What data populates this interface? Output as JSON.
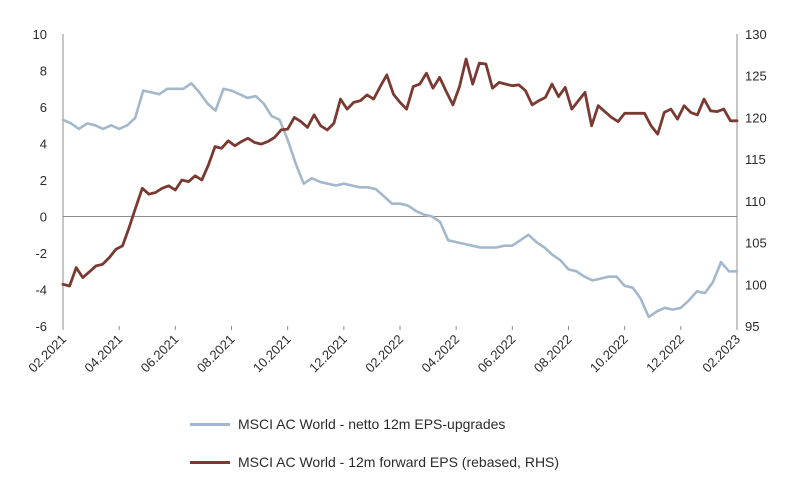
{
  "chart_data": {
    "type": "line",
    "x_ticks": [
      "02.2021",
      "04.2021",
      "06.2021",
      "08.2021",
      "10.2021",
      "12.2021",
      "02.2022",
      "04.2022",
      "06.2022",
      "08.2022",
      "10.2022",
      "12.2022",
      "02.2023"
    ],
    "y_left": {
      "min": -6,
      "max": 10,
      "ticks": [
        10,
        8,
        6,
        4,
        2,
        0,
        -2,
        -4,
        -6
      ]
    },
    "y_right": {
      "min": 95,
      "max": 130,
      "ticks": [
        130,
        125,
        120,
        115,
        110,
        105,
        100,
        95
      ]
    },
    "series": [
      {
        "name": "MSCI AC World - netto 12m EPS-upgrades",
        "axis": "left",
        "color": "#a3b8cc",
        "values": [
          5.3,
          5.1,
          4.8,
          5.1,
          5.0,
          4.8,
          5.0,
          4.8,
          5.0,
          5.4,
          6.9,
          6.8,
          6.7,
          7.0,
          7.0,
          7.0,
          7.3,
          6.8,
          6.2,
          5.8,
          7.0,
          6.9,
          6.7,
          6.5,
          6.6,
          6.2,
          5.5,
          5.3,
          4.2,
          2.9,
          1.8,
          2.1,
          1.9,
          1.8,
          1.7,
          1.8,
          1.7,
          1.6,
          1.6,
          1.5,
          1.1,
          0.7,
          0.7,
          0.6,
          0.3,
          0.1,
          0.0,
          -0.3,
          -1.3,
          -1.4,
          -1.5,
          -1.6,
          -1.7,
          -1.7,
          -1.7,
          -1.6,
          -1.6,
          -1.3,
          -1.0,
          -1.4,
          -1.7,
          -2.1,
          -2.4,
          -2.9,
          -3.0,
          -3.3,
          -3.5,
          -3.4,
          -3.3,
          -3.3,
          -3.8,
          -3.9,
          -4.5,
          -5.5,
          -5.2,
          -5.0,
          -5.1,
          -5.0,
          -4.6,
          -4.1,
          -4.2,
          -3.6,
          -2.5,
          -3.0,
          -3.0
        ]
      },
      {
        "name": "MSCI AC World - 12m forward EPS (rebased, RHS)",
        "axis": "right",
        "color": "#7a3a32",
        "values": [
          100.0,
          99.8,
          102.0,
          100.8,
          101.5,
          102.2,
          102.4,
          103.2,
          104.2,
          104.6,
          106.8,
          109.2,
          111.5,
          110.8,
          111.0,
          111.5,
          111.8,
          111.3,
          112.5,
          112.3,
          113.0,
          112.5,
          114.3,
          116.5,
          116.3,
          117.2,
          116.6,
          117.1,
          117.5,
          117.0,
          116.8,
          117.1,
          117.6,
          118.5,
          118.6,
          120.0,
          119.5,
          118.8,
          120.3,
          119.0,
          118.5,
          119.3,
          122.2,
          121.0,
          121.8,
          122.0,
          122.7,
          122.2,
          123.7,
          125.1,
          122.8,
          121.8,
          121.0,
          123.7,
          124.0,
          125.3,
          123.5,
          124.8,
          123.1,
          121.5,
          123.7,
          127.0,
          124.0,
          126.5,
          126.4,
          123.5,
          124.2,
          124.0,
          123.8,
          123.9,
          123.2,
          121.5,
          122.0,
          122.4,
          124.0,
          122.5,
          123.6,
          121.0,
          122.0,
          123.0,
          119.0,
          121.4,
          120.7,
          120.0,
          119.5,
          120.5,
          120.5,
          120.5,
          120.5,
          119.0,
          118.0,
          120.6,
          121.0,
          119.8,
          121.4,
          120.6,
          120.3,
          122.2,
          120.8,
          120.7,
          121.0,
          119.6,
          119.6
        ]
      }
    ],
    "zero_line": 0
  }
}
